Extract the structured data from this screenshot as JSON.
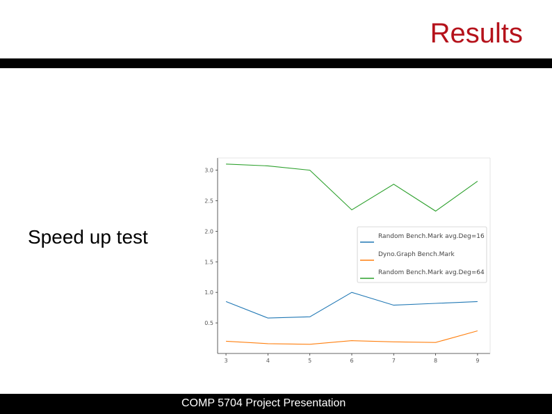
{
  "slide": {
    "title": "Results",
    "label": "Speed up test",
    "footer": "COMP 5704 Project Presentation"
  },
  "chart_data": {
    "type": "line",
    "x": [
      3,
      4,
      5,
      6,
      7,
      8,
      9
    ],
    "xticks": [
      "3",
      "4",
      "5",
      "6",
      "7",
      "8",
      "9"
    ],
    "yticks": [
      "0.5",
      "1.0",
      "1.5",
      "2.0",
      "2.5",
      "3.0"
    ],
    "ylim": [
      0.0,
      3.2
    ],
    "xlim": [
      2.8,
      9.3
    ],
    "grid": false,
    "legend_position": "center-right",
    "series": [
      {
        "name": "Random Bench.Mark avg.Deg=16",
        "color": "#1f77b4",
        "values": [
          0.85,
          0.58,
          0.6,
          1.0,
          0.79,
          0.82,
          0.85
        ]
      },
      {
        "name": "Dyno.Graph Bench.Mark",
        "color": "#ff7f0e",
        "values": [
          0.2,
          0.16,
          0.15,
          0.21,
          0.19,
          0.18,
          0.37
        ]
      },
      {
        "name": "Random Bench.Mark avg.Deg=64",
        "color": "#2ca02c",
        "values": [
          3.1,
          3.07,
          3.0,
          2.35,
          2.77,
          2.33,
          2.82
        ]
      }
    ]
  }
}
